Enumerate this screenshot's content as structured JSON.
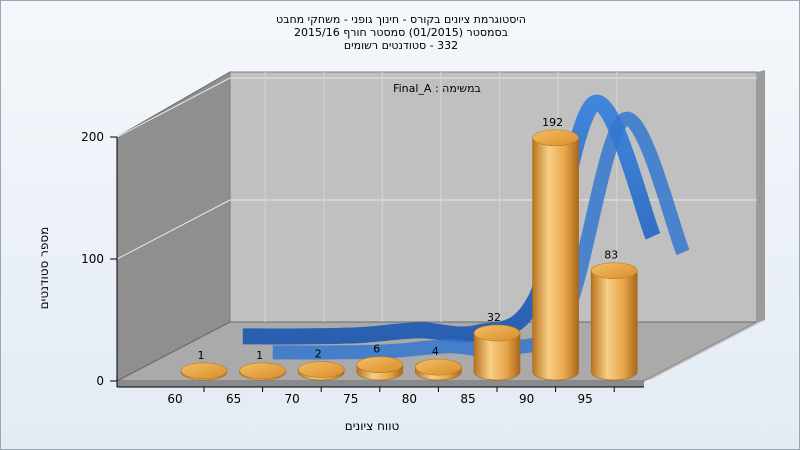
{
  "chart_data": {
    "type": "bar",
    "title_lines": [
      "היסטוגרמת ציונים בקורס - חינוך גופני - משחקי מחבט",
      "בסמסטר  (01/2015)  סמסטר חורף  2015/16",
      "332 - סטודנטים רשומים"
    ],
    "subtitle": "Final_A : במשימה",
    "xlabel": "טווח ציונים",
    "ylabel": "מספר סטודנטים",
    "categories": [
      "60",
      "65",
      "70",
      "75",
      "80",
      "85",
      "90",
      "95"
    ],
    "series": [
      {
        "values": [
          1,
          1,
          2,
          6,
          4,
          32,
          192,
          83
        ]
      }
    ],
    "yticks": [
      "0",
      "100",
      "200"
    ],
    "ylim": [
      0,
      200
    ],
    "grid": true,
    "colors": {
      "bar": "#e8a33c",
      "curve": "#2f6fc4",
      "back_wall": "#bfbfbf",
      "side_wall": "#8e8e8e",
      "floor": "#a8a8a8"
    }
  }
}
